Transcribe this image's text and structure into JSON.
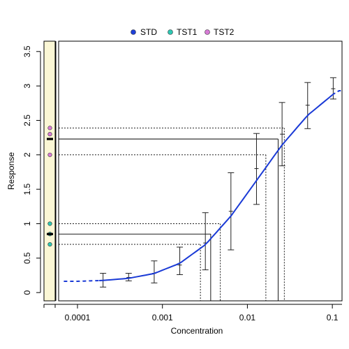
{
  "chart_data": {
    "type": "scatter",
    "xlabel": "Concentration",
    "ylabel": "Response",
    "x_scale": "log",
    "xlim": [
      6e-05,
      0.13
    ],
    "ylim": [
      -0.12,
      3.65
    ],
    "x_ticks": [
      {
        "value": 0.0001,
        "label": "0.0001"
      },
      {
        "value": 0.001,
        "label": "0.001"
      },
      {
        "value": 0.01,
        "label": "0.01"
      },
      {
        "value": 0.1,
        "label": "0.1"
      }
    ],
    "y_ticks": [
      {
        "value": 0,
        "label": "0"
      },
      {
        "value": 0.5,
        "label": "0.5"
      },
      {
        "value": 1,
        "label": "1"
      },
      {
        "value": 1.5,
        "label": "1.5"
      },
      {
        "value": 2,
        "label": "2"
      },
      {
        "value": 2.5,
        "label": "2.5"
      },
      {
        "value": 3,
        "label": "3"
      },
      {
        "value": 3.5,
        "label": "3.5"
      }
    ],
    "legend": {
      "placement": "top-center",
      "entries": [
        {
          "name": "STD",
          "color": "#1e3fd8"
        },
        {
          "name": "TST1",
          "color": "#2ec8b4"
        },
        {
          "name": "TST2",
          "color": "#d77bd6"
        }
      ]
    },
    "standard_curve": {
      "color": "#1a3ad6",
      "points": [
        {
          "x": 0.0001,
          "y": 0.164
        },
        {
          "x": 0.0002,
          "y": 0.176
        },
        {
          "x": 0.0004,
          "y": 0.207
        },
        {
          "x": 0.0008,
          "y": 0.277
        },
        {
          "x": 0.0016,
          "y": 0.425
        },
        {
          "x": 0.0032,
          "y": 0.695
        },
        {
          "x": 0.0064,
          "y": 1.111
        },
        {
          "x": 0.0128,
          "y": 1.626
        },
        {
          "x": 0.0256,
          "y": 2.144
        },
        {
          "x": 0.0512,
          "y": 2.574
        },
        {
          "x": 0.1024,
          "y": 2.88
        },
        {
          "x": 0.12,
          "y": 2.93
        }
      ],
      "dashed_below": 0.00018,
      "dashed_above": 0.1
    },
    "error_bars": [
      {
        "x": 0.0002,
        "low": 0.08,
        "high": 0.28,
        "mid": 0.18
      },
      {
        "x": 0.0004,
        "low": 0.17,
        "high": 0.28,
        "mid": 0.22
      },
      {
        "x": 0.0008,
        "low": 0.14,
        "high": 0.46,
        "mid": 0.28
      },
      {
        "x": 0.0016,
        "low": 0.26,
        "high": 0.66,
        "mid": 0.4
      },
      {
        "x": 0.0032,
        "low": 0.33,
        "high": 1.16,
        "mid": 0.72
      },
      {
        "x": 0.0064,
        "low": 0.62,
        "high": 1.74,
        "mid": 1.18
      },
      {
        "x": 0.0128,
        "low": 1.28,
        "high": 2.31,
        "mid": 1.8
      },
      {
        "x": 0.0256,
        "low": 1.84,
        "high": 2.76,
        "mid": 2.3
      },
      {
        "x": 0.0512,
        "low": 2.38,
        "high": 3.05,
        "mid": 2.72
      },
      {
        "x": 0.1024,
        "low": 2.81,
        "high": 3.12,
        "mid": 2.96
      }
    ],
    "test_samples": [
      {
        "name": "TST1",
        "color": "#2ec8b4",
        "replicates": [
          0.7,
          0.85,
          1.0
        ],
        "mean": 0.85,
        "low": 0.7,
        "high": 1.0,
        "mean_conc": 0.0037,
        "low_conc": 0.0028,
        "high_conc": 0.0048
      },
      {
        "name": "TST2",
        "color": "#d77bd6",
        "replicates": [
          2.0,
          2.3,
          2.39
        ],
        "mean": 2.23,
        "low": 2.0,
        "high": 2.39,
        "mean_conc": 0.023,
        "low_conc": 0.0165,
        "high_conc": 0.0272
      }
    ],
    "side_panel_color": "#fbf7d5"
  }
}
